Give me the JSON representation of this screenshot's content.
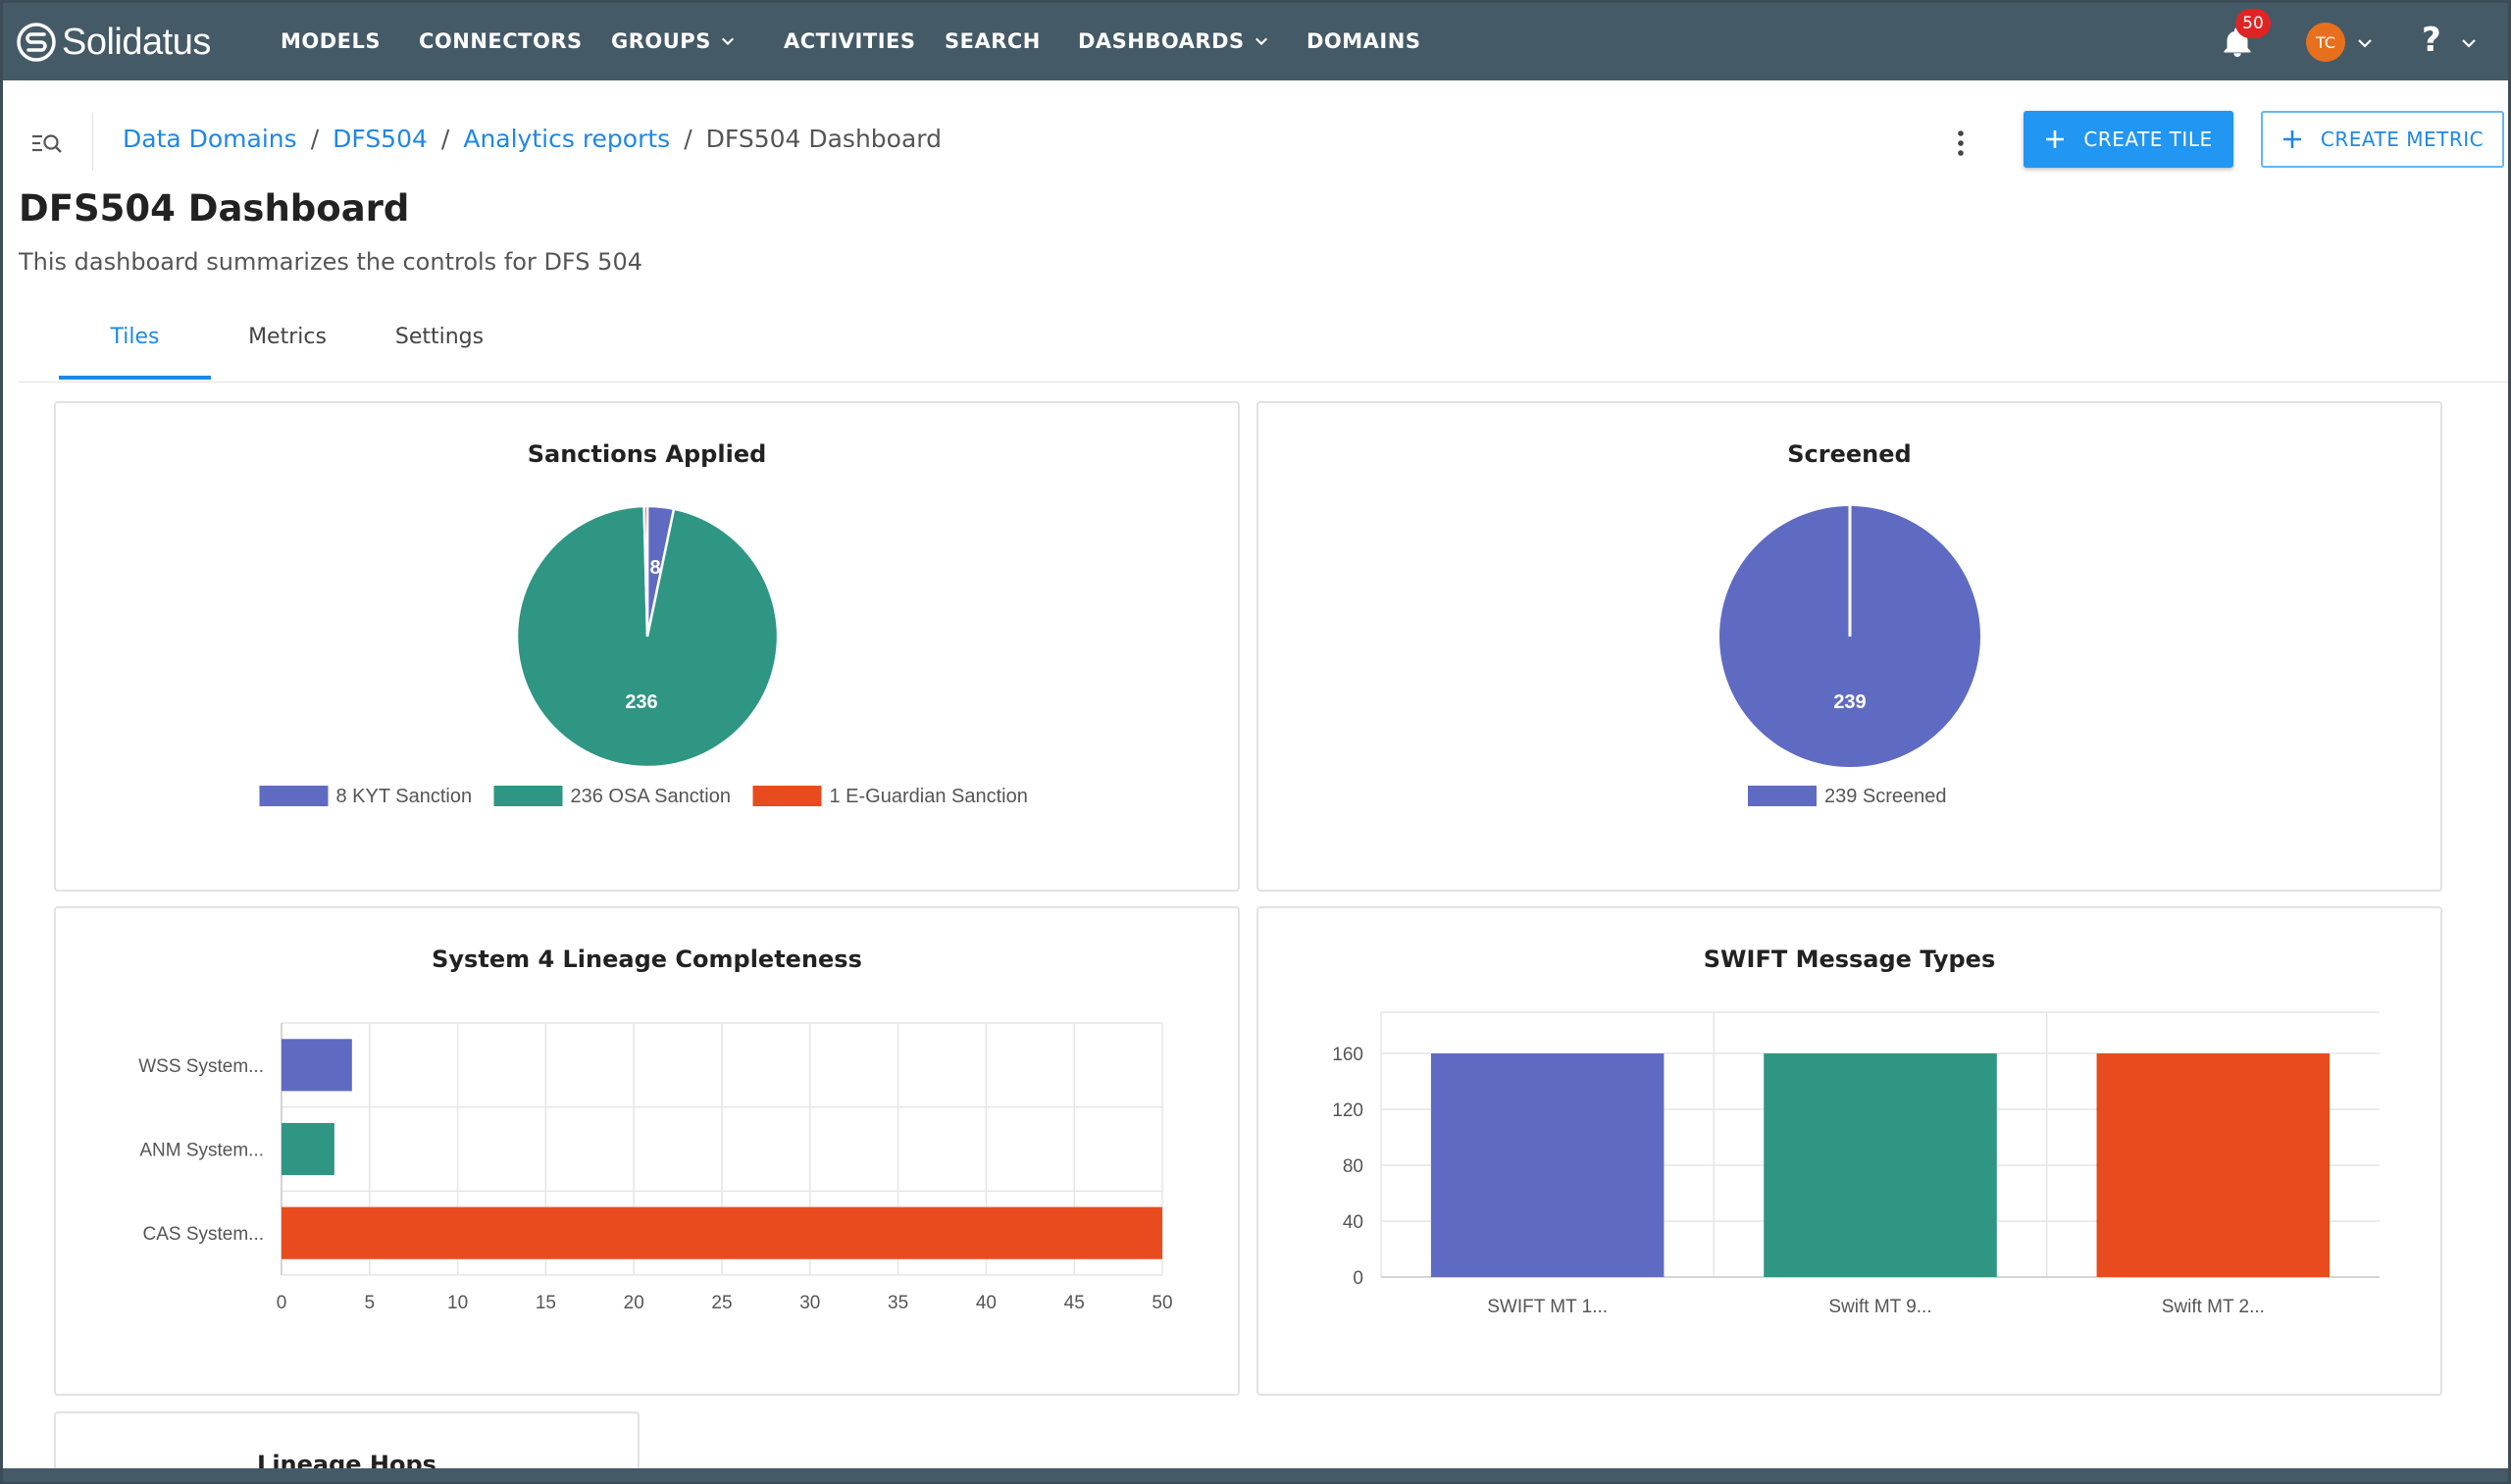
{
  "brand": {
    "name": "Solidatus"
  },
  "nav": {
    "items": [
      {
        "label": "MODELS",
        "dropdown": false
      },
      {
        "label": "CONNECTORS",
        "dropdown": false
      },
      {
        "label": "GROUPS",
        "dropdown": true
      },
      {
        "label": "ACTIVITIES",
        "dropdown": false
      },
      {
        "label": "SEARCH",
        "dropdown": false
      },
      {
        "label": "DASHBOARDS",
        "dropdown": true
      },
      {
        "label": "DOMAINS",
        "dropdown": false
      }
    ],
    "notifications": "50",
    "user_initials": "TC",
    "help": "?"
  },
  "breadcrumb": {
    "items": [
      "Data Domains",
      "DFS504",
      "Analytics reports"
    ],
    "current": "DFS504 Dashboard",
    "separator": "/"
  },
  "actions": {
    "create_tile": "CREATE TILE",
    "create_metric": "CREATE METRIC"
  },
  "page": {
    "title": "DFS504 Dashboard",
    "description": "This dashboard summarizes the controls for DFS 504"
  },
  "tabs": [
    {
      "label": "Tiles",
      "active": true
    },
    {
      "label": "Metrics",
      "active": false
    },
    {
      "label": "Settings",
      "active": false
    }
  ],
  "colors": {
    "blue": "#5f6bc2",
    "teal": "#2e9683",
    "orange": "#e84c1e",
    "accent": "#1e88e5",
    "nav": "#455a67"
  },
  "tiles": [
    {
      "title": "Sanctions Applied"
    },
    {
      "title": "Screened"
    },
    {
      "title": "System 4 Lineage Completeness"
    },
    {
      "title": "SWIFT Message Types"
    },
    {
      "title": "Lineage Hops"
    }
  ],
  "chart_data": [
    {
      "type": "pie",
      "title": "Sanctions Applied",
      "slices": [
        {
          "label": "KYT Sanction",
          "value": 8,
          "legend": "8 KYT Sanction",
          "color": "#5f6bc2",
          "data_label": "8"
        },
        {
          "label": "OSA Sanction",
          "value": 236,
          "legend": "236 OSA Sanction",
          "color": "#2e9683",
          "data_label": "236"
        },
        {
          "label": "E-Guardian Sanction",
          "value": 1,
          "legend": "1 E-Guardian Sanction",
          "color": "#e84c1e",
          "data_label": ""
        }
      ],
      "legend_position": "bottom"
    },
    {
      "type": "pie",
      "title": "Screened",
      "slices": [
        {
          "label": "Screened",
          "value": 239,
          "legend": "239 Screened",
          "color": "#5f6bc2",
          "data_label": "239"
        }
      ],
      "legend_position": "bottom"
    },
    {
      "type": "bar",
      "orientation": "horizontal",
      "title": "System 4 Lineage Completeness",
      "categories": [
        "WSS System...",
        "ANM System...",
        "CAS System..."
      ],
      "values": [
        4,
        3,
        50
      ],
      "colors": [
        "#5f6bc2",
        "#2e9683",
        "#e84c1e"
      ],
      "xlim": [
        0,
        50
      ],
      "xticks": [
        0,
        5,
        10,
        15,
        20,
        25,
        30,
        35,
        40,
        45,
        50
      ],
      "grid": true
    },
    {
      "type": "bar",
      "orientation": "vertical",
      "title": "SWIFT Message Types",
      "categories": [
        "SWIFT MT 1...",
        "Swift MT 9...",
        "Swift MT 2..."
      ],
      "values": [
        160,
        160,
        160
      ],
      "colors": [
        "#5f6bc2",
        "#2e9683",
        "#e84c1e"
      ],
      "ylim": [
        0,
        160
      ],
      "yticks": [
        0,
        40,
        80,
        120,
        160
      ],
      "grid": true
    }
  ]
}
